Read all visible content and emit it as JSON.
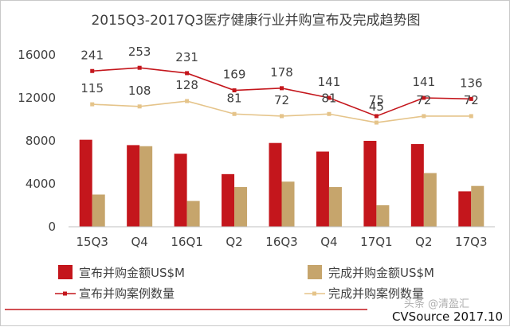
{
  "chart_data": {
    "type": "bar",
    "title": "2015Q3-2017Q3医疗健康行业并购宣布及完成趋势图",
    "categories": [
      "15Q3",
      "Q4",
      "16Q1",
      "Q2",
      "16Q3",
      "Q4",
      "17Q1",
      "Q2",
      "17Q3"
    ],
    "ylim": [
      0,
      16000
    ],
    "yticks": [
      "0",
      "4000",
      "8000",
      "12000",
      "16000"
    ],
    "ytick_values": [
      0,
      4000,
      8000,
      12000,
      16000
    ],
    "grid": false,
    "legend_position": "bottom",
    "bar_series": [
      {
        "name": "宣布并购金额US$M",
        "color": "#c4161c",
        "values": [
          8100,
          7600,
          6800,
          4900,
          7800,
          7000,
          8000,
          7700,
          3300
        ]
      },
      {
        "name": "完成并购金额US$M",
        "color": "#c6a56c",
        "values": [
          3000,
          7500,
          2400,
          3700,
          4200,
          3700,
          2000,
          5000,
          3800
        ]
      }
    ],
    "line_series": [
      {
        "name": "宣布并购案例数量",
        "color": "#c4161c",
        "values": [
          241,
          253,
          231,
          169,
          178,
          141,
          75,
          141,
          136
        ],
        "plot_y": [
          14500,
          14800,
          14300,
          12700,
          12900,
          12000,
          10300,
          12000,
          11900
        ]
      },
      {
        "name": "完成并购案例数量",
        "color": "#e5c48a",
        "values": [
          115,
          108,
          128,
          81,
          72,
          81,
          45,
          72,
          72
        ],
        "plot_y": [
          11400,
          11200,
          11700,
          10500,
          10300,
          10500,
          9700,
          10300,
          10300
        ]
      }
    ]
  },
  "source": "CVSource 2017.10",
  "watermark": "头条 @清盈汇"
}
